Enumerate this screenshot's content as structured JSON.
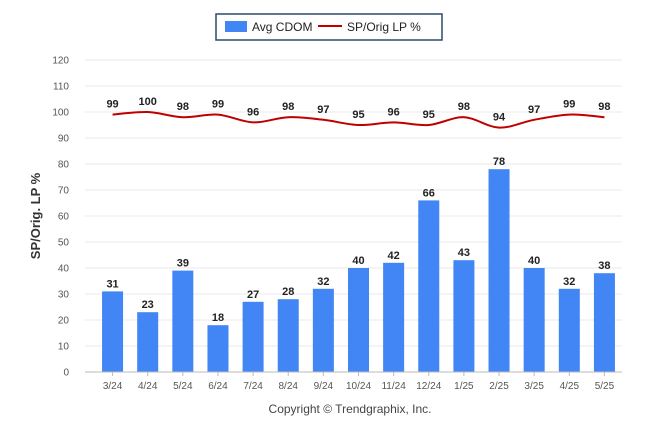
{
  "chart_data": {
    "type": "bar",
    "categories": [
      "3/24",
      "4/24",
      "5/24",
      "6/24",
      "7/24",
      "8/24",
      "9/24",
      "10/24",
      "11/24",
      "12/24",
      "1/25",
      "2/25",
      "3/25",
      "4/25",
      "5/25"
    ],
    "series": [
      {
        "name": "Avg CDOM",
        "kind": "bar",
        "color": "#4285f4",
        "values": [
          31,
          23,
          39,
          18,
          27,
          28,
          32,
          40,
          42,
          66,
          43,
          78,
          40,
          32,
          38
        ]
      },
      {
        "name": "SP/Orig LP %",
        "kind": "line",
        "color": "#c00000",
        "values": [
          99,
          100,
          98,
          99,
          96,
          98,
          97,
          95,
          96,
          95,
          98,
          94,
          97,
          99,
          98
        ]
      }
    ],
    "ylabel": "SP/Orig. LP %",
    "ylim": [
      0,
      120
    ],
    "yticks": [
      0,
      10,
      20,
      30,
      40,
      50,
      60,
      70,
      80,
      90,
      100,
      110,
      120
    ],
    "grid": true,
    "legend_position": "top-center"
  },
  "legend": {
    "bar_label": "Avg CDOM",
    "line_label": "SP/Orig LP %"
  },
  "footer": {
    "copyright": "Copyright © Trendgraphix, Inc."
  }
}
